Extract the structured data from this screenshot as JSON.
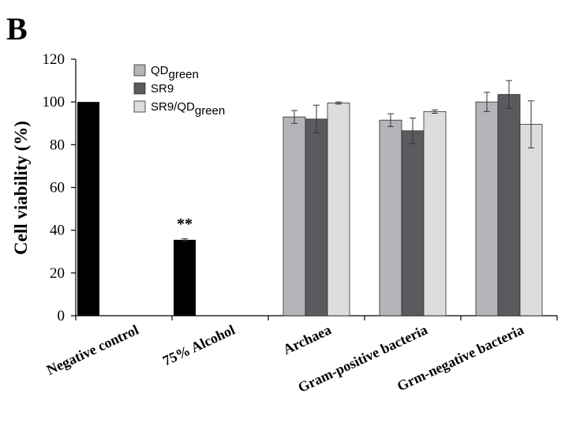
{
  "panel_label": "B",
  "chart_data": {
    "type": "bar",
    "ylabel": "Cell viability (%)",
    "ylim": [
      0,
      120
    ],
    "yticks": [
      0,
      20,
      40,
      60,
      80,
      100,
      120
    ],
    "grid": false,
    "legend_position": "top-left",
    "categories": [
      "Negative control",
      "75% Alcohol",
      "Archaea",
      "Gram-positive bacteria",
      "Grm-negative bacteria"
    ],
    "controls": [
      {
        "category": "Negative control",
        "value": 100,
        "color": "#000000"
      },
      {
        "category": "75% Alcohol",
        "value": 35.5,
        "error": 0.5,
        "color": "#000000",
        "annotation": "**"
      }
    ],
    "series": [
      {
        "name_main": "QD",
        "name_sub": "green",
        "color": "#b4b5b8",
        "values": [
          null,
          null,
          93,
          91.5,
          100
        ],
        "errors": [
          null,
          null,
          3,
          3,
          4.5
        ]
      },
      {
        "name_main": "SR9",
        "name_sub": "",
        "color": "#5a5b5e",
        "values": [
          null,
          null,
          92,
          86.5,
          103.5
        ],
        "errors": [
          null,
          null,
          6.5,
          6,
          6.5
        ]
      },
      {
        "name_main": "SR9/QD",
        "name_sub": "green",
        "color": "#dcdddd",
        "values": [
          null,
          null,
          99.5,
          95.5,
          89.5
        ],
        "errors": [
          null,
          null,
          0.5,
          0.8,
          11
        ]
      }
    ]
  }
}
